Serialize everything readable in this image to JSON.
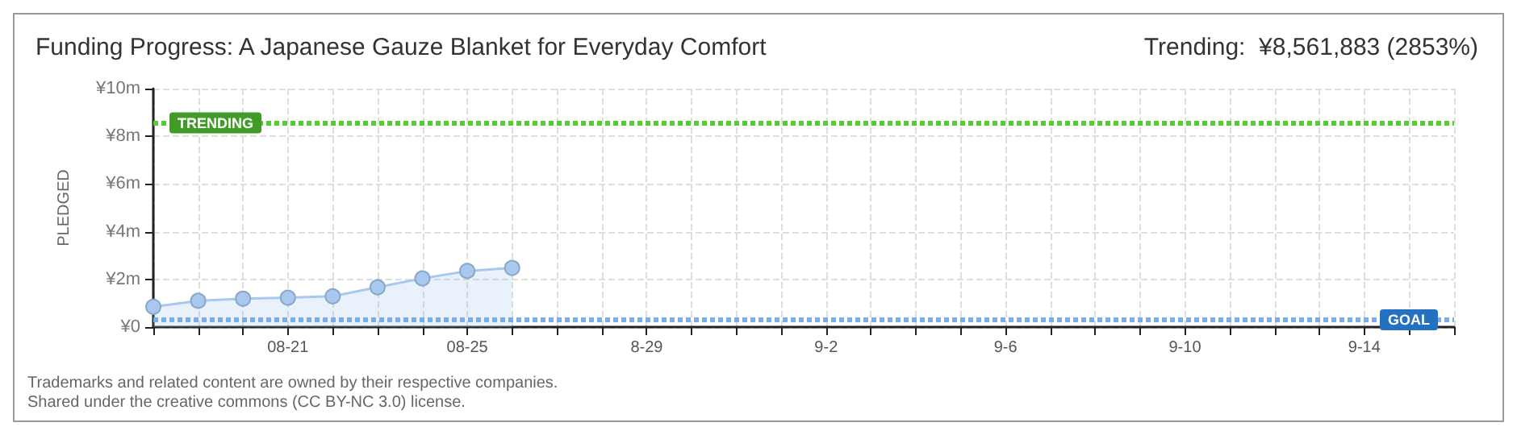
{
  "chart_data": {
    "type": "area",
    "title": "Funding Progress: A Japanese Gauze Blanket for Everyday Comfort",
    "subtitle": "Trending:  ¥8,561,883 (2853%)",
    "ylabel": "PLEDGED",
    "categories": [
      null,
      null,
      null,
      "08-21",
      null,
      null,
      null,
      "08-25",
      null,
      null,
      null,
      "8-29",
      null,
      null,
      null,
      "9-2",
      null,
      null,
      null,
      "9-6",
      null,
      null,
      null,
      "9-10",
      null,
      null,
      null,
      "9-14",
      null,
      null
    ],
    "series": [
      {
        "color": "#a8c8ee",
        "values": [
          0.85,
          1.1,
          1.19,
          1.23,
          1.29,
          1.67,
          2.04,
          2.35,
          2.48,
          null,
          null,
          null,
          null,
          null,
          null,
          null,
          null,
          null,
          null,
          null,
          null,
          null,
          null,
          null,
          null,
          null,
          null,
          null,
          null,
          null
        ]
      }
    ],
    "ylim": [
      0,
      10
    ],
    "yticks": [
      {
        "value": 0,
        "label": "¥0"
      },
      {
        "value": 2,
        "label": "¥2m"
      },
      {
        "value": 4,
        "label": "¥4m"
      },
      {
        "value": 6,
        "label": "¥6m"
      },
      {
        "value": 8,
        "label": "¥8m"
      },
      {
        "value": 10,
        "label": "¥10m"
      }
    ],
    "ref_lines": [
      {
        "axis": "y",
        "value": 8.56,
        "label": "TRENDING",
        "color": "#55cc33",
        "line_style": "dotted"
      },
      {
        "axis": "y",
        "value": 0.3,
        "label": "GOAL",
        "color": "#7aaee6",
        "line_style": "dotted"
      }
    ],
    "grid": true,
    "marker": "circle",
    "annotations": [
      "Trademarks and related content are owned by their respective companies.",
      "Shared under the creative commons (CC BY-NC 3.0) license."
    ]
  }
}
